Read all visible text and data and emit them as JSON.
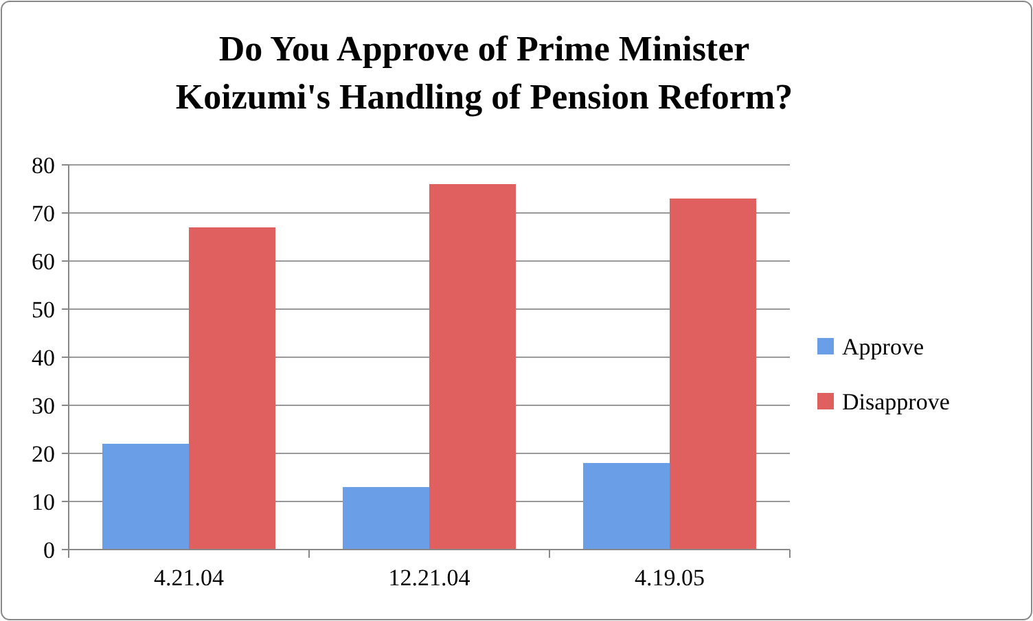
{
  "chart_data": {
    "type": "bar",
    "title": "Do You Approve of Prime Minister\nKoizumi's Handling of Pension Reform?",
    "categories": [
      "4.21.04",
      "12.21.04",
      "4.19.05"
    ],
    "series": [
      {
        "name": "Approve",
        "color": "#6a9ee6",
        "values": [
          22,
          13,
          18
        ]
      },
      {
        "name": "Disapprove",
        "color": "#e0605f",
        "values": [
          67,
          76,
          73
        ]
      }
    ],
    "ylim": [
      0,
      80
    ],
    "yticks": [
      0,
      10,
      20,
      30,
      40,
      50,
      60,
      70,
      80
    ],
    "grid": "y",
    "legend": "right"
  }
}
